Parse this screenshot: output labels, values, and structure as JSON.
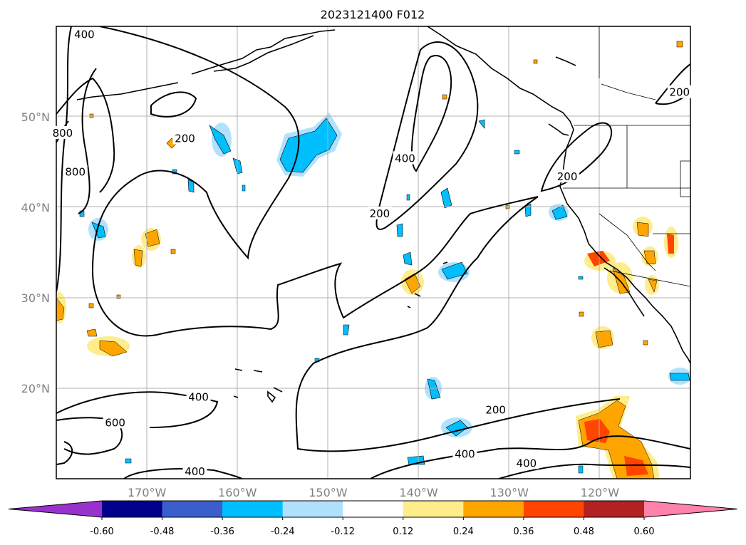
{
  "chart_data": {
    "type": "contour_map",
    "title": "2023121400 F012",
    "lon_range": [
      -180,
      -110
    ],
    "lat_range": [
      10,
      60
    ],
    "lat_ticks": [
      "20°N",
      "30°N",
      "40°N",
      "50°N"
    ],
    "lon_ticks": [
      "170°W",
      "160°W",
      "150°W",
      "140°W",
      "130°W",
      "120°W"
    ],
    "grid": true,
    "contour_levels": [
      "200",
      "400",
      "600",
      "800"
    ],
    "contour_labels": [
      {
        "text": "400",
        "lon": -176.9,
        "lat": 59.1
      },
      {
        "text": "800",
        "lon": -179.3,
        "lat": 48.2
      },
      {
        "text": "800",
        "lon": -177.9,
        "lat": 43.9
      },
      {
        "text": "200",
        "lon": -165.8,
        "lat": 47.6
      },
      {
        "text": "400",
        "lon": -141.5,
        "lat": 45.4
      },
      {
        "text": "200",
        "lon": -144.3,
        "lat": 39.3
      },
      {
        "text": "200",
        "lon": -111.2,
        "lat": 52.7
      },
      {
        "text": "200",
        "lon": -123.6,
        "lat": 43.4
      },
      {
        "text": "400",
        "lon": -164.3,
        "lat": 19.0
      },
      {
        "text": "600",
        "lon": -173.5,
        "lat": 16.2
      },
      {
        "text": "200",
        "lon": -131.5,
        "lat": 17.6
      },
      {
        "text": "400",
        "lon": -134.9,
        "lat": 12.7
      },
      {
        "text": "400",
        "lon": -128.1,
        "lat": 11.7
      },
      {
        "text": "400",
        "lon": -164.7,
        "lat": 10.8
      }
    ],
    "colorbar": {
      "extend": "both",
      "boundaries": [
        "-0.60",
        "-0.48",
        "-0.36",
        "-0.24",
        "-0.12",
        "0.12",
        "0.24",
        "0.36",
        "0.48",
        "0.60"
      ],
      "colors": [
        "#9932cc",
        "#00008b",
        "#3a5fcd",
        "#00bfff",
        "#b0e2ff",
        "#ffffff",
        "#ffec8b",
        "#ffa500",
        "#ff4500",
        "#b22222",
        "#ff82ab"
      ]
    }
  }
}
